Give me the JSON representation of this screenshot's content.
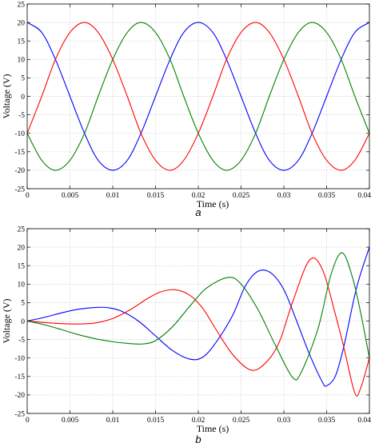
{
  "chart_data": [
    {
      "type": "line",
      "panel_label": "a",
      "xlabel": "Time (s)",
      "ylabel": "Voltage (V)",
      "xlim": [
        0,
        0.04
      ],
      "ylim": [
        -25,
        25
      ],
      "xticks": [
        0,
        0.005,
        0.01,
        0.015,
        0.02,
        0.025,
        0.03,
        0.035,
        0.04
      ],
      "xtick_labels": [
        "0",
        "0.005",
        "0.01",
        "0.015",
        "0.02",
        "0.025",
        "0.03",
        "0.035",
        "0.04"
      ],
      "yticks": [
        -25,
        -20,
        -15,
        -10,
        -5,
        0,
        5,
        10,
        15,
        20,
        25
      ],
      "grid": true,
      "legend": "none",
      "series": [
        {
          "color": "#0000ff",
          "x": [
            0,
            0.0017,
            0.0033,
            0.005,
            0.0067,
            0.0083,
            0.01,
            0.0117,
            0.0133,
            0.015,
            0.0167,
            0.0183,
            0.02,
            0.0217,
            0.0233,
            0.025,
            0.0267,
            0.0283,
            0.03,
            0.0317,
            0.0333,
            0.035,
            0.0367,
            0.0383,
            0.04
          ],
          "y": [
            20,
            17.3,
            10,
            0,
            -10,
            -17.3,
            -20,
            -17.3,
            -10,
            0,
            10,
            17.3,
            20,
            17.3,
            10,
            0,
            -10,
            -17.3,
            -20,
            -17.3,
            -10,
            0,
            10,
            17.3,
            20
          ]
        },
        {
          "color": "#ff0000",
          "x": [
            0,
            0.0017,
            0.0033,
            0.005,
            0.0067,
            0.0083,
            0.01,
            0.0117,
            0.0133,
            0.015,
            0.0167,
            0.0183,
            0.02,
            0.0217,
            0.0233,
            0.025,
            0.0267,
            0.0283,
            0.03,
            0.0317,
            0.0333,
            0.035,
            0.0367,
            0.0383,
            0.04
          ],
          "y": [
            -10,
            0,
            10,
            17.3,
            20,
            17.3,
            10,
            0,
            -10,
            -17.3,
            -20,
            -17.3,
            -10,
            0,
            10,
            17.3,
            20,
            17.3,
            10,
            0,
            -10,
            -17.3,
            -20,
            -17.3,
            -10
          ]
        },
        {
          "color": "#008000",
          "x": [
            0,
            0.0017,
            0.0033,
            0.005,
            0.0067,
            0.0083,
            0.01,
            0.0117,
            0.0133,
            0.015,
            0.0167,
            0.0183,
            0.02,
            0.0217,
            0.0233,
            0.025,
            0.0267,
            0.0283,
            0.03,
            0.0317,
            0.0333,
            0.035,
            0.0367,
            0.0383,
            0.04
          ],
          "y": [
            -10,
            -17.3,
            -20,
            -17.3,
            -10,
            0,
            10,
            17.3,
            20,
            17.3,
            10,
            0,
            -10,
            -17.3,
            -20,
            -17.3,
            -10,
            0,
            10,
            17.3,
            20,
            17.3,
            10,
            0,
            -10
          ]
        }
      ]
    },
    {
      "type": "line",
      "panel_label": "b",
      "xlabel": "Time (s)",
      "ylabel": "Voltage (V)",
      "xlim": [
        0,
        0.04
      ],
      "ylim": [
        -25,
        25
      ],
      "xticks": [
        0,
        0.005,
        0.01,
        0.015,
        0.02,
        0.025,
        0.03,
        0.035,
        0.04
      ],
      "xtick_labels": [
        "0",
        "0.005",
        "0.01",
        "0.015",
        "0.02",
        "0.025",
        "0.03",
        "0.035",
        "0.04"
      ],
      "yticks": [
        -25,
        -20,
        -15,
        -10,
        -5,
        0,
        5,
        10,
        15,
        20,
        25
      ],
      "grid": true,
      "legend": "none",
      "series": [
        {
          "color": "#0000ff",
          "x": [
            0,
            0.002,
            0.004,
            0.006,
            0.008,
            0.0095,
            0.011,
            0.013,
            0.015,
            0.017,
            0.019,
            0.0205,
            0.022,
            0.024,
            0.0255,
            0.027,
            0.0285,
            0.03,
            0.0315,
            0.033,
            0.0345,
            0.035,
            0.036,
            0.037,
            0.0385,
            0.04
          ],
          "y": [
            0,
            1,
            2.2,
            3.2,
            3.7,
            3.6,
            2.7,
            0,
            -4,
            -8,
            -10.3,
            -9.8,
            -6,
            1.5,
            9.5,
            13.5,
            13,
            8.5,
            0,
            -9,
            -16.5,
            -17.5,
            -15,
            -7,
            9,
            20
          ]
        },
        {
          "color": "#ff0000",
          "x": [
            0,
            0.002,
            0.004,
            0.006,
            0.008,
            0.01,
            0.012,
            0.014,
            0.0155,
            0.0172,
            0.019,
            0.0205,
            0.022,
            0.024,
            0.0262,
            0.028,
            0.0295,
            0.031,
            0.033,
            0.0345,
            0.036,
            0.037,
            0.0383,
            0.039,
            0.04
          ],
          "y": [
            0,
            -0.4,
            -0.7,
            -0.8,
            -0.5,
            0.7,
            3,
            6,
            7.8,
            8.5,
            7,
            3.5,
            -2,
            -9,
            -13.3,
            -11,
            -5.5,
            5,
            16.5,
            14,
            2,
            -7,
            -19.5,
            -18,
            -10
          ]
        },
        {
          "color": "#008000",
          "x": [
            0,
            0.002,
            0.004,
            0.006,
            0.008,
            0.01,
            0.012,
            0.0135,
            0.015,
            0.017,
            0.019,
            0.021,
            0.0235,
            0.025,
            0.027,
            0.029,
            0.031,
            0.032,
            0.034,
            0.0355,
            0.0368,
            0.038,
            0.039,
            0.04
          ],
          "y": [
            0,
            -1,
            -2.3,
            -3.7,
            -4.8,
            -5.6,
            -6.1,
            -6.2,
            -5.3,
            -1.5,
            4,
            9,
            11.8,
            10,
            3,
            -6.5,
            -15.2,
            -14,
            -2,
            12.5,
            18.5,
            12,
            2,
            -10
          ]
        }
      ]
    }
  ],
  "captions": [
    "a",
    "b"
  ]
}
